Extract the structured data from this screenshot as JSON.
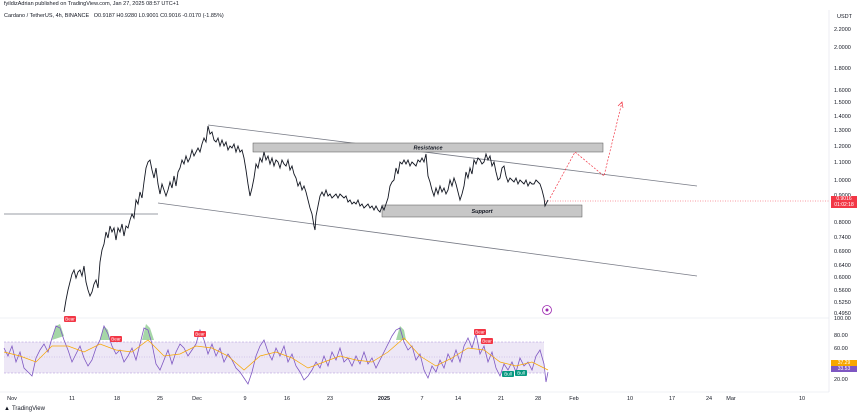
{
  "header": {
    "published_line": "fyildizAdrian published on TradingView.com, Jan 27, 2025 08:57 UTC+1"
  },
  "symbol": {
    "name": "Cardano / TetherUS, 4h, BINANCE",
    "ohlc": "O0.9187 H0.9280 L0.9001 C0.9016 -0.0170 (-1.85%)"
  },
  "price_axis": {
    "currency": "USDT",
    "labels": [
      "2.2000",
      "2.0000",
      "1.8000",
      "1.6000",
      "1.5000",
      "1.4000",
      "1.3000",
      "1.2000",
      "1.1000",
      "1.0000",
      "0.9000",
      "0.8000",
      "0.7400",
      "0.6900",
      "0.6400",
      "0.6000",
      "0.5600",
      "0.5250",
      "0.4950"
    ],
    "current_price": "0.9016",
    "countdown": "01:02:18"
  },
  "rsi_axis": {
    "labels": [
      "100.00",
      "80.00",
      "60.00",
      "40.00",
      "20.00"
    ],
    "rsi_value": "37.29",
    "rsi_ma_value": "33.53"
  },
  "time_axis": {
    "labels": [
      "Nov",
      "11",
      "18",
      "25",
      "Dec",
      "9",
      "16",
      "23",
      "2025",
      "7",
      "14",
      "21",
      "28",
      "Feb",
      "10",
      "17",
      "24",
      "Mar",
      "10"
    ]
  },
  "annotations": {
    "resistance": "Resistance",
    "support": "Support",
    "bear_label": "Bear",
    "bull_label": "Bull"
  },
  "colors": {
    "candle": "#131722",
    "channel": "#787b86",
    "zone_fill": "#c7c7c7",
    "projection": "#f23645",
    "rsi_line": "#7e57c2",
    "rsi_ma": "#f7a600",
    "rsi_band": "#ede7f6",
    "bear": "#f23645",
    "bull": "#089981",
    "price_tag": "#f23645"
  },
  "branding": {
    "logo_text": "TradingView"
  }
}
